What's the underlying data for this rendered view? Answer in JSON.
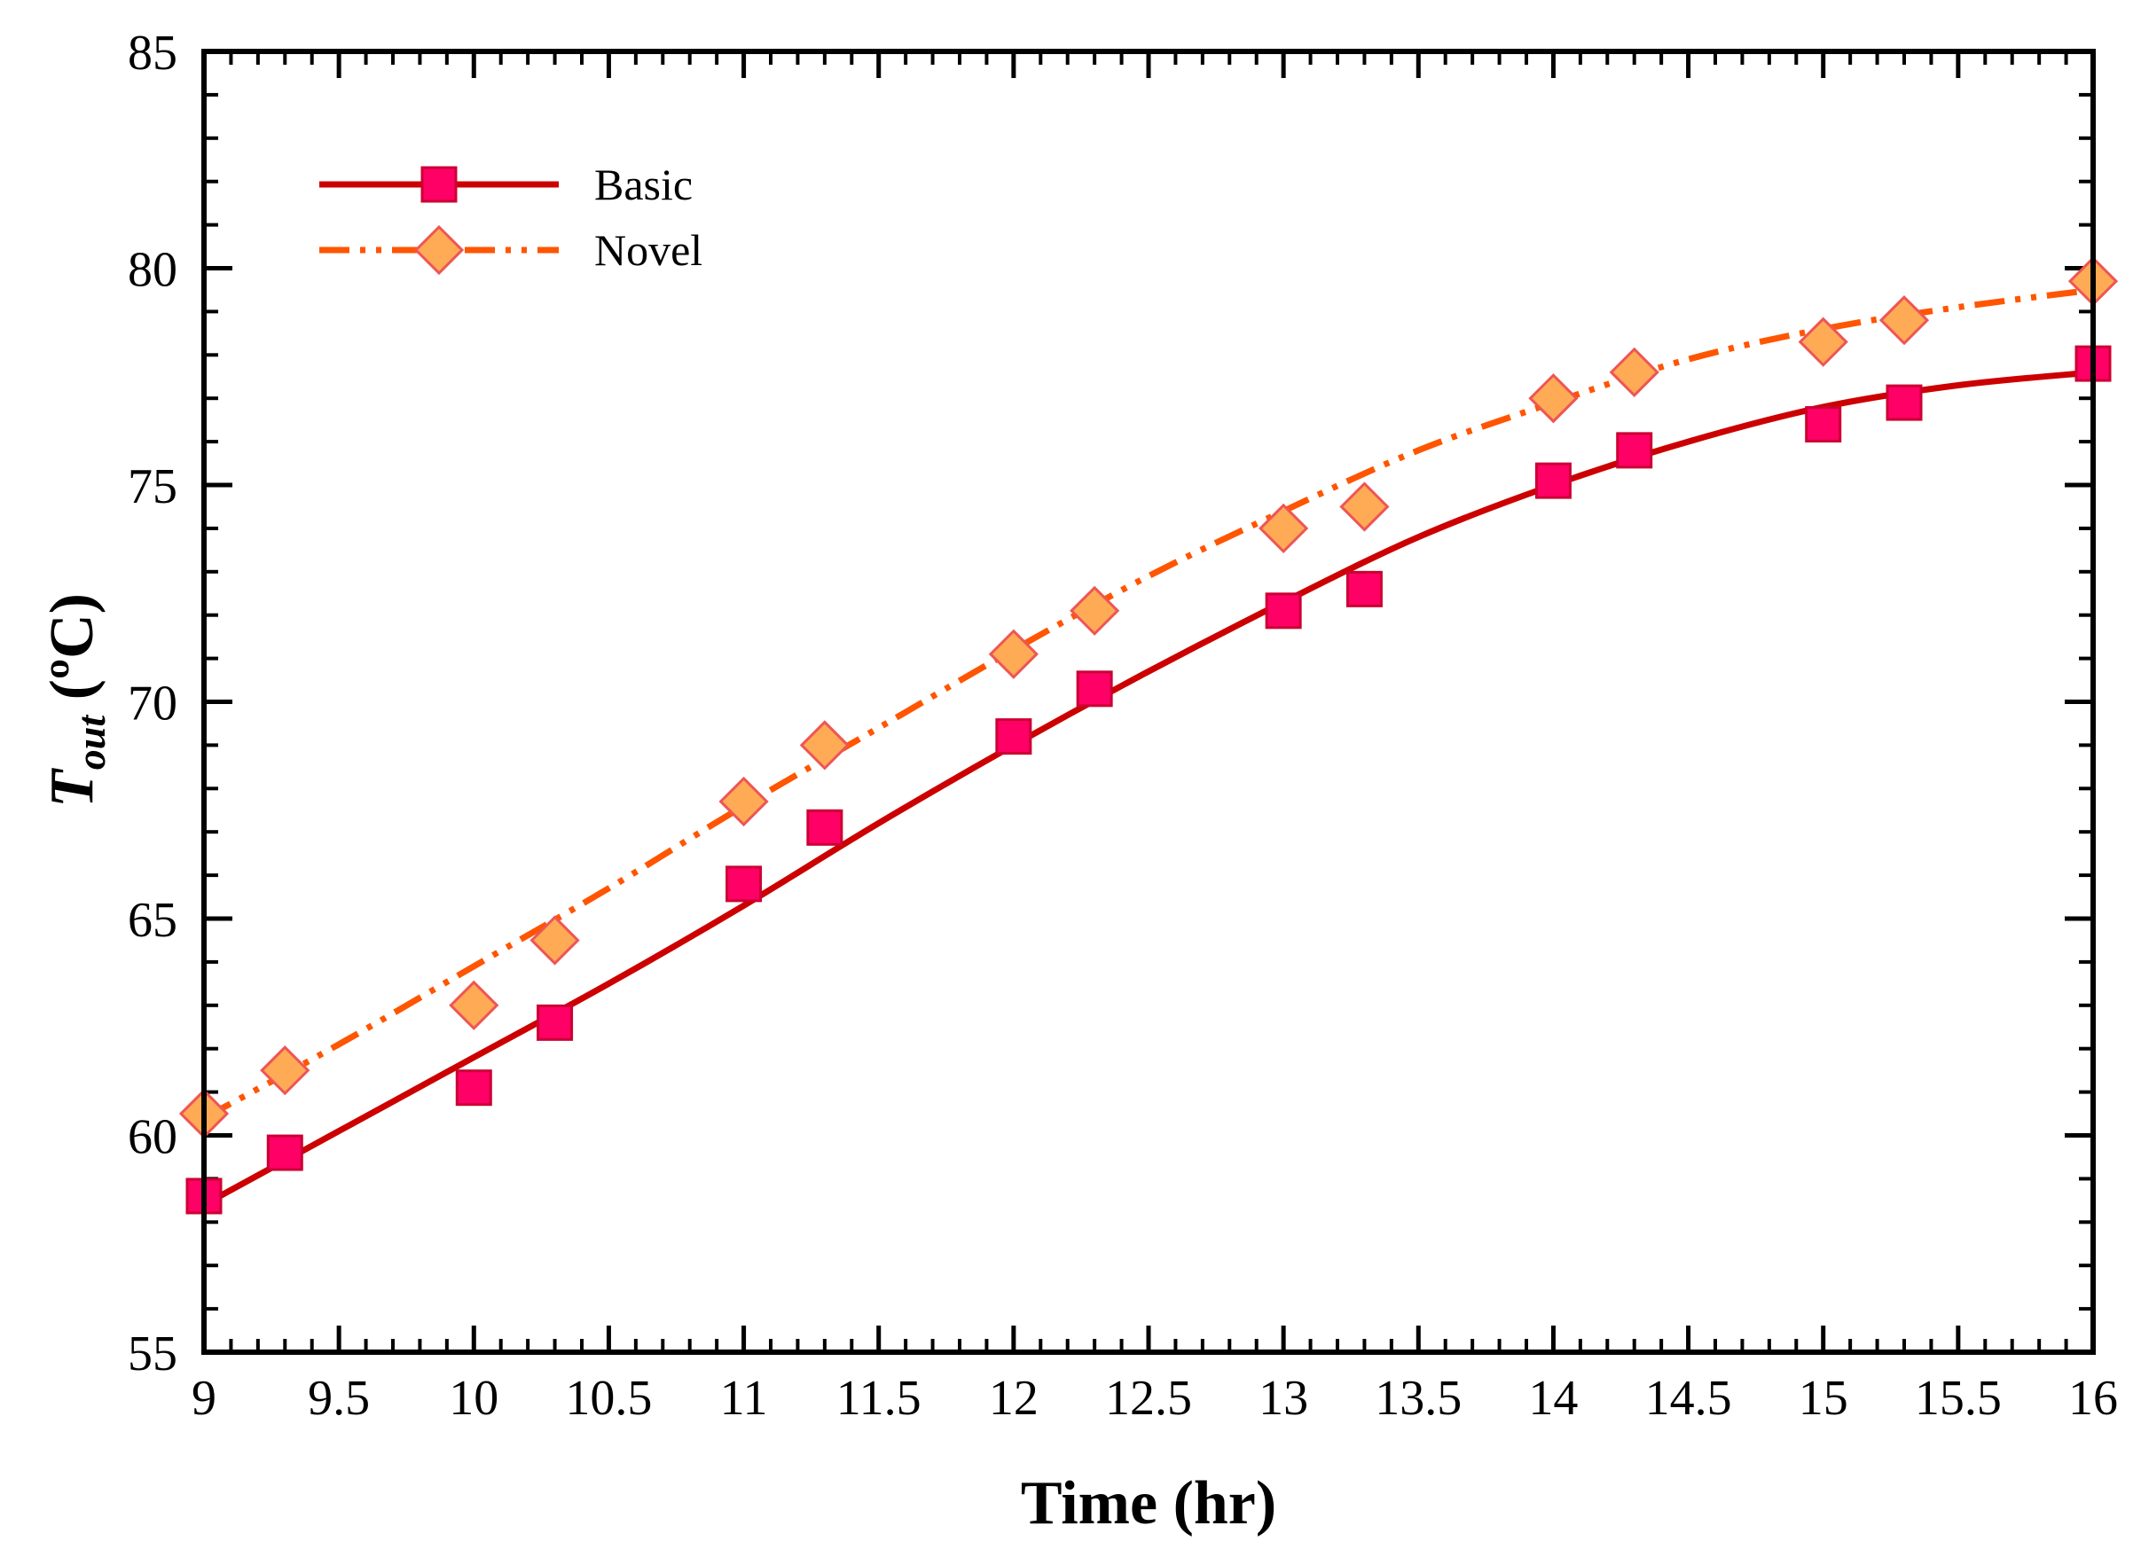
{
  "chart_data": {
    "type": "line",
    "title": "",
    "xlabel": "Time (hr)",
    "ylabel_main": "T",
    "ylabel_sub": "out",
    "ylabel_unit": " (ºC)",
    "xlim": [
      9,
      16
    ],
    "ylim": [
      55,
      85
    ],
    "x_ticks": [
      9,
      9.5,
      10,
      10.5,
      11,
      11.5,
      12,
      12.5,
      13,
      13.5,
      14,
      14.5,
      15,
      15.5,
      16
    ],
    "x_tick_labels": [
      "9",
      "9.5",
      "10",
      "10.5",
      "11",
      "11.5",
      "12",
      "12.5",
      "13",
      "13.5",
      "14",
      "14.5",
      "15",
      "15.5",
      "16"
    ],
    "y_ticks": [
      55,
      60,
      65,
      70,
      75,
      80,
      85
    ],
    "y_tick_labels": [
      "55",
      "60",
      "65",
      "70",
      "75",
      "80",
      "85"
    ],
    "grid": false,
    "legend_position": "top-left",
    "series": [
      {
        "name": "Basic",
        "line_style": "solid",
        "line_color": "#cc0000",
        "marker": "square",
        "marker_fill": "#ff0066",
        "marker_edge": "#cc0033",
        "points_x": [
          9,
          9.3,
          10,
          10.3,
          11,
          11.3,
          12,
          12.3,
          13,
          13.3,
          14,
          14.3,
          15,
          15.3,
          16
        ],
        "points_y": [
          58.6,
          59.6,
          61.1,
          62.6,
          65.8,
          67.1,
          69.2,
          70.3,
          72.1,
          72.6,
          75.1,
          75.8,
          76.4,
          76.9,
          77.8
        ],
        "curve_x": [
          9,
          9.5,
          10,
          10.5,
          11,
          11.5,
          12,
          12.5,
          13,
          13.5,
          14,
          14.5,
          15,
          15.5,
          16
        ],
        "curve_y": [
          58.4,
          60.1,
          61.8,
          63.5,
          65.3,
          67.2,
          69.0,
          70.7,
          72.3,
          73.8,
          75.0,
          76.0,
          76.8,
          77.3,
          77.6
        ]
      },
      {
        "name": "Novel",
        "line_style": "dash-dot-dot",
        "line_color": "#ff5500",
        "marker": "diamond",
        "marker_fill": "#ffaa55",
        "marker_edge": "#ee5555",
        "points_x": [
          9,
          9.3,
          10,
          10.3,
          11,
          11.3,
          12,
          12.3,
          13,
          13.3,
          14,
          14.3,
          15,
          15.3,
          16
        ],
        "points_y": [
          60.5,
          61.5,
          63.0,
          64.5,
          67.7,
          69.0,
          71.1,
          72.1,
          74.0,
          74.5,
          77.0,
          77.6,
          78.3,
          78.8,
          79.7
        ],
        "curve_x": [
          9,
          9.5,
          10,
          10.5,
          11,
          11.5,
          12,
          12.5,
          13,
          13.5,
          14,
          14.5,
          15,
          15.5,
          16
        ],
        "curve_y": [
          60.4,
          62.1,
          63.9,
          65.7,
          67.6,
          69.4,
          71.2,
          72.9,
          74.4,
          75.8,
          76.9,
          77.9,
          78.6,
          79.1,
          79.5
        ]
      }
    ]
  }
}
